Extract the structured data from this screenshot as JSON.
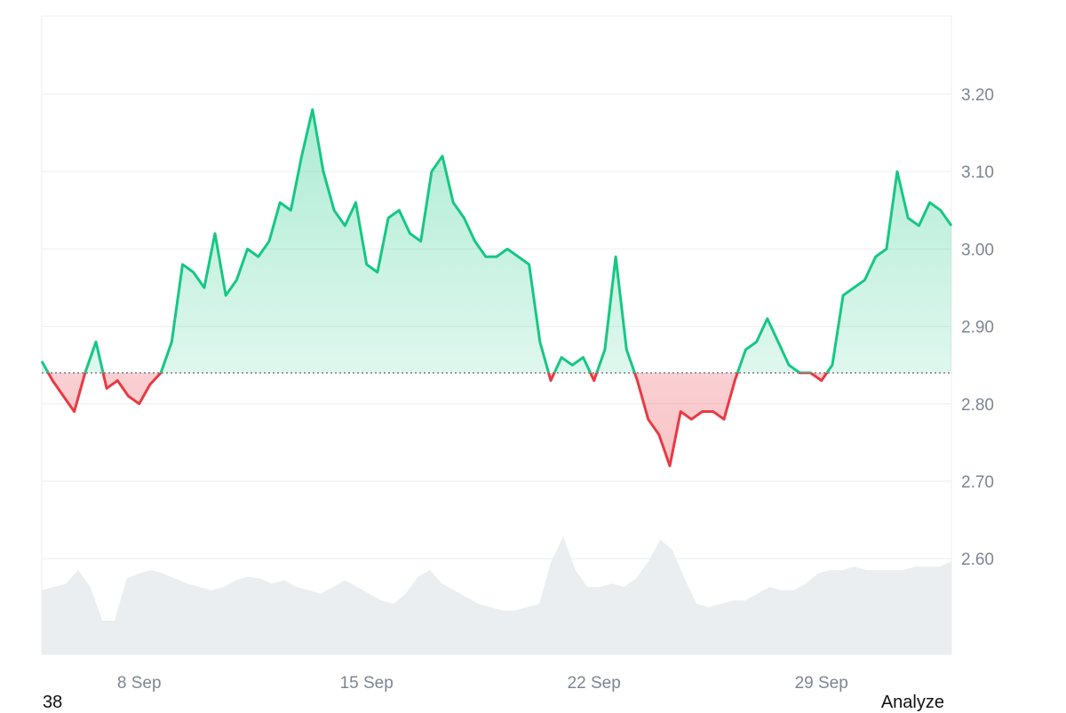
{
  "footer": {
    "left_text": "38",
    "analyze_label": "Analyze"
  },
  "colors": {
    "up": "#16c784",
    "down": "#ea3943",
    "up_fill": "#16c784",
    "down_fill": "#ea3943",
    "volume": "#e8ebef",
    "grid": "#eceef1",
    "baseline": "#6b7280"
  },
  "chart_data": {
    "type": "line",
    "baseline": 2.84,
    "ylim": [
      2.5,
      3.3
    ],
    "xlim": [
      "2023-09-05",
      "2023-10-03"
    ],
    "y_ticks": [
      2.6,
      2.7,
      2.8,
      2.9,
      3.0,
      3.1,
      3.2
    ],
    "y_tick_labels": [
      "2.60",
      "2.70",
      "2.80",
      "2.90",
      "3.00",
      "3.10",
      "3.20"
    ],
    "x_ticks": [
      "2023-09-08",
      "2023-09-15",
      "2023-09-22",
      "2023-09-29"
    ],
    "x_tick_labels": [
      "8 Sep",
      "15 Sep",
      "22 Sep",
      "29 Sep"
    ],
    "grid": true,
    "series": [
      {
        "x": [
          "2023-09-05 00:00",
          "2023-09-05 08:00",
          "2023-09-05 16:00",
          "2023-09-06 00:00",
          "2023-09-06 08:00",
          "2023-09-06 16:00",
          "2023-09-07 00:00",
          "2023-09-07 08:00",
          "2023-09-07 16:00",
          "2023-09-08 00:00",
          "2023-09-08 08:00",
          "2023-09-08 16:00",
          "2023-09-09 00:00",
          "2023-09-09 08:00",
          "2023-09-09 16:00",
          "2023-09-10 00:00",
          "2023-09-10 08:00",
          "2023-09-10 16:00",
          "2023-09-11 00:00",
          "2023-09-11 08:00",
          "2023-09-11 16:00",
          "2023-09-12 00:00",
          "2023-09-12 08:00",
          "2023-09-12 16:00",
          "2023-09-13 00:00",
          "2023-09-13 08:00",
          "2023-09-13 16:00",
          "2023-09-14 00:00",
          "2023-09-14 08:00",
          "2023-09-14 16:00",
          "2023-09-15 00:00",
          "2023-09-15 08:00",
          "2023-09-15 16:00",
          "2023-09-16 00:00",
          "2023-09-16 08:00",
          "2023-09-16 16:00",
          "2023-09-17 00:00",
          "2023-09-17 08:00",
          "2023-09-17 16:00",
          "2023-09-18 00:00",
          "2023-09-18 08:00",
          "2023-09-18 16:00",
          "2023-09-19 00:00",
          "2023-09-19 08:00",
          "2023-09-19 16:00",
          "2023-09-20 00:00",
          "2023-09-20 08:00",
          "2023-09-20 16:00",
          "2023-09-21 00:00",
          "2023-09-21 08:00",
          "2023-09-21 16:00",
          "2023-09-22 00:00",
          "2023-09-22 08:00",
          "2023-09-22 16:00",
          "2023-09-23 00:00",
          "2023-09-23 08:00",
          "2023-09-23 16:00",
          "2023-09-24 00:00",
          "2023-09-24 08:00",
          "2023-09-24 16:00",
          "2023-09-25 00:00",
          "2023-09-25 08:00",
          "2023-09-25 16:00",
          "2023-09-26 00:00",
          "2023-09-26 08:00",
          "2023-09-26 16:00",
          "2023-09-27 00:00",
          "2023-09-27 08:00",
          "2023-09-27 16:00",
          "2023-09-28 00:00",
          "2023-09-28 08:00",
          "2023-09-28 16:00",
          "2023-09-29 00:00",
          "2023-09-29 08:00",
          "2023-09-29 16:00",
          "2023-09-30 00:00",
          "2023-09-30 08:00",
          "2023-09-30 16:00",
          "2023-10-01 00:00",
          "2023-10-01 08:00",
          "2023-10-01 16:00",
          "2023-10-02 00:00",
          "2023-10-02 08:00",
          "2023-10-02 16:00",
          "2023-10-03 00:00"
        ],
        "values": [
          2.855,
          2.83,
          2.81,
          2.79,
          2.84,
          2.88,
          2.82,
          2.83,
          2.81,
          2.8,
          2.825,
          2.84,
          2.88,
          2.98,
          2.97,
          2.95,
          3.02,
          2.94,
          2.96,
          3.0,
          2.99,
          3.01,
          3.06,
          3.05,
          3.12,
          3.18,
          3.1,
          3.05,
          3.03,
          3.06,
          2.98,
          2.97,
          3.04,
          3.05,
          3.02,
          3.01,
          3.1,
          3.12,
          3.06,
          3.04,
          3.01,
          2.99,
          2.99,
          3.0,
          2.99,
          2.98,
          2.88,
          2.83,
          2.86,
          2.85,
          2.86,
          2.83,
          2.87,
          2.99,
          2.87,
          2.83,
          2.78,
          2.76,
          2.72,
          2.79,
          2.78,
          2.79,
          2.79,
          2.78,
          2.83,
          2.87,
          2.88,
          2.91,
          2.88,
          2.85,
          2.84,
          2.84,
          2.83,
          2.85,
          2.94,
          2.95,
          2.96,
          2.99,
          3.0,
          3.1,
          3.04,
          3.03,
          3.06,
          3.05,
          3.03
        ]
      }
    ],
    "volume": [
      0.38,
      0.4,
      0.42,
      0.5,
      0.4,
      0.2,
      0.2,
      0.45,
      0.48,
      0.5,
      0.48,
      0.45,
      0.42,
      0.4,
      0.38,
      0.4,
      0.44,
      0.46,
      0.45,
      0.42,
      0.44,
      0.4,
      0.38,
      0.36,
      0.4,
      0.44,
      0.4,
      0.36,
      0.32,
      0.3,
      0.36,
      0.46,
      0.5,
      0.42,
      0.38,
      0.34,
      0.3,
      0.28,
      0.26,
      0.26,
      0.28,
      0.3,
      0.55,
      0.7,
      0.5,
      0.4,
      0.4,
      0.42,
      0.4,
      0.45,
      0.55,
      0.68,
      0.62,
      0.45,
      0.3,
      0.28,
      0.3,
      0.32,
      0.32,
      0.36,
      0.4,
      0.38,
      0.38,
      0.42,
      0.48,
      0.5,
      0.5,
      0.52,
      0.5,
      0.5,
      0.5,
      0.5,
      0.52,
      0.52,
      0.52,
      0.55
    ]
  }
}
